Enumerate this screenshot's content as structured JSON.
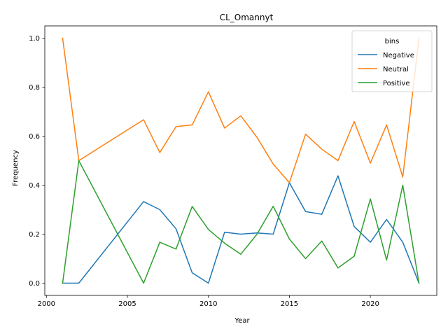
{
  "chart_data": {
    "type": "line",
    "title": "CL_Omannyt",
    "xlabel": "Year",
    "ylabel": "Frequency",
    "xlim": [
      1999.9,
      2024.1
    ],
    "ylim": [
      -0.05,
      1.05
    ],
    "xticks": [
      2000,
      2005,
      2010,
      2015,
      2020
    ],
    "yticks": [
      0.0,
      0.2,
      0.4,
      0.6,
      0.8,
      1.0
    ],
    "yticks_labels": [
      "0.0",
      "0.2",
      "0.4",
      "0.6",
      "0.8",
      "1.0"
    ],
    "legend_title": "bins",
    "legend_position": "upper right",
    "grid": false,
    "x": [
      2001,
      2002,
      2006,
      2007,
      2008,
      2009,
      2010,
      2011,
      2012,
      2013,
      2014,
      2015,
      2016,
      2017,
      2018,
      2019,
      2020,
      2021,
      2022,
      2023
    ],
    "series": [
      {
        "name": "Negative",
        "color": "#1f77b4",
        "values": [
          0.0,
          0.0,
          0.333,
          0.3,
          0.222,
          0.042,
          0.0,
          0.208,
          0.2,
          0.205,
          0.2,
          0.41,
          0.292,
          0.281,
          0.438,
          0.231,
          0.167,
          0.26,
          0.167,
          0.0
        ]
      },
      {
        "name": "Neutral",
        "color": "#ff7f0e",
        "values": [
          1.0,
          0.5,
          0.667,
          0.533,
          0.639,
          0.646,
          0.781,
          0.633,
          0.683,
          0.595,
          0.486,
          0.41,
          0.608,
          0.547,
          0.5,
          0.66,
          0.49,
          0.646,
          0.433,
          1.0
        ]
      },
      {
        "name": "Positive",
        "color": "#2ca02c",
        "values": [
          0.0,
          0.5,
          0.0,
          0.167,
          0.139,
          0.313,
          0.219,
          0.163,
          0.118,
          0.2,
          0.314,
          0.18,
          0.1,
          0.172,
          0.062,
          0.11,
          0.344,
          0.094,
          0.4,
          0.0
        ]
      }
    ]
  }
}
